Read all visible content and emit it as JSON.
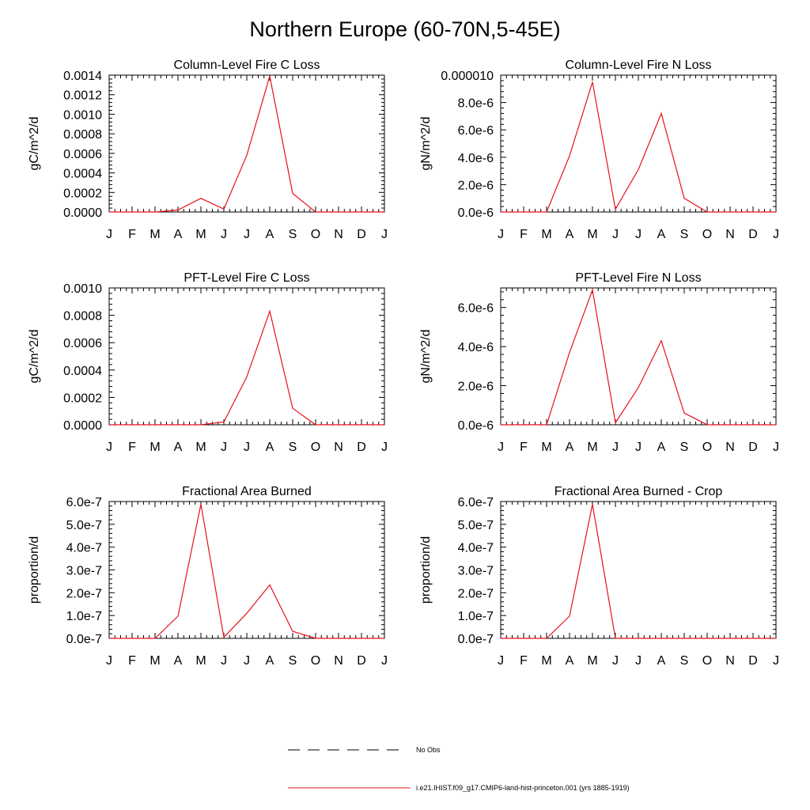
{
  "page": {
    "title": "Northern Europe (60-70N,5-45E)"
  },
  "colors": {
    "series": "#e8101a",
    "axis": "#000000",
    "obs": "#000000"
  },
  "legend": [
    {
      "label": "No Obs",
      "style": "dashed",
      "color": "#000000"
    },
    {
      "label": "i.e21.IHIST.f09_g17.CMIP6-land-hist-princeton.001 (yrs 1885-1919)",
      "style": "solid",
      "color": "#e8101a"
    }
  ],
  "chart_data": [
    {
      "type": "line",
      "title": "Column-Level Fire C Loss",
      "ylabel": "gC/m^2/d",
      "categories": [
        "J",
        "F",
        "M",
        "A",
        "M",
        "J",
        "J",
        "A",
        "S",
        "O",
        "N",
        "D",
        "J"
      ],
      "ylim": [
        0,
        0.0014
      ],
      "yticks": [
        0,
        0.0002,
        0.0004,
        0.0006,
        0.0008,
        0.001,
        0.0012,
        0.0014
      ],
      "ytick_labels": [
        "0.0000",
        "0.0002",
        "0.0004",
        "0.0006",
        "0.0008",
        "0.0010",
        "0.0012",
        "0.0014"
      ],
      "series": [
        {
          "values": [
            0,
            0,
            0,
            2e-05,
            0.00014,
            3e-05,
            0.00058,
            0.00139,
            0.00019,
            0,
            0,
            0,
            0
          ]
        }
      ]
    },
    {
      "type": "line",
      "title": "Column-Level Fire N Loss",
      "ylabel": "gN/m^2/d",
      "categories": [
        "J",
        "F",
        "M",
        "A",
        "M",
        "J",
        "J",
        "A",
        "S",
        "O",
        "N",
        "D",
        "J"
      ],
      "ylim": [
        0,
        1e-05
      ],
      "yticks": [
        0,
        2e-06,
        4e-06,
        6e-06,
        8e-06,
        1e-05
      ],
      "ytick_labels": [
        "0.0e-6",
        "2.0e-6",
        "4.0e-6",
        "6.0e-6",
        "8.0e-6",
        "0.000010"
      ],
      "series": [
        {
          "values": [
            0,
            0,
            0,
            4.1e-06,
            9.5e-06,
            2e-07,
            3.1e-06,
            7.2e-06,
            1e-06,
            0,
            0,
            0,
            0
          ]
        }
      ]
    },
    {
      "type": "line",
      "title": "PFT-Level Fire C Loss",
      "ylabel": "gC/m^2/d",
      "categories": [
        "J",
        "F",
        "M",
        "A",
        "M",
        "J",
        "J",
        "A",
        "S",
        "O",
        "N",
        "D",
        "J"
      ],
      "ylim": [
        0,
        0.001
      ],
      "yticks": [
        0,
        0.0002,
        0.0004,
        0.0006,
        0.0008,
        0.001
      ],
      "ytick_labels": [
        "0.0000",
        "0.0002",
        "0.0004",
        "0.0006",
        "0.0008",
        "0.0010"
      ],
      "series": [
        {
          "values": [
            0,
            0,
            0,
            0,
            0,
            2e-05,
            0.00035,
            0.00083,
            0.00012,
            0,
            0,
            0,
            0
          ]
        }
      ]
    },
    {
      "type": "line",
      "title": "PFT-Level Fire N Loss",
      "ylabel": "gN/m^2/d",
      "categories": [
        "J",
        "F",
        "M",
        "A",
        "M",
        "J",
        "J",
        "A",
        "S",
        "O",
        "N",
        "D",
        "J"
      ],
      "ylim": [
        0,
        7e-06
      ],
      "yticks": [
        0,
        2e-06,
        4e-06,
        6e-06
      ],
      "ytick_labels": [
        "0.0e-6",
        "2.0e-6",
        "4.0e-6",
        "6.0e-6"
      ],
      "series": [
        {
          "values": [
            0,
            0,
            0,
            3.7e-06,
            6.9e-06,
            1e-07,
            1.9e-06,
            4.3e-06,
            6e-07,
            0,
            0,
            0,
            0
          ]
        }
      ]
    },
    {
      "type": "line",
      "title": "Fractional Area Burned",
      "ylabel": "proportion/d",
      "categories": [
        "J",
        "F",
        "M",
        "A",
        "M",
        "J",
        "J",
        "A",
        "S",
        "O",
        "N",
        "D",
        "J"
      ],
      "ylim": [
        0,
        6e-07
      ],
      "yticks": [
        0,
        1e-07,
        2e-07,
        3e-07,
        4e-07,
        5e-07,
        6e-07
      ],
      "ytick_labels": [
        "0.0e-7",
        "1.0e-7",
        "2.0e-7",
        "3.0e-7",
        "4.0e-7",
        "5.0e-7",
        "6.0e-7"
      ],
      "series": [
        {
          "values": [
            0,
            0,
            0,
            9.7e-08,
            5.88e-07,
            5e-09,
            1.1e-07,
            2.34e-07,
            3.1e-08,
            0,
            0,
            0,
            0
          ]
        }
      ]
    },
    {
      "type": "line",
      "title": "Fractional Area Burned - Crop",
      "ylabel": "proportion/d",
      "categories": [
        "J",
        "F",
        "M",
        "A",
        "M",
        "J",
        "J",
        "A",
        "S",
        "O",
        "N",
        "D",
        "J"
      ],
      "ylim": [
        0,
        6e-07
      ],
      "yticks": [
        0,
        1e-07,
        2e-07,
        3e-07,
        4e-07,
        5e-07,
        6e-07
      ],
      "ytick_labels": [
        "0.0e-7",
        "1.0e-7",
        "2.0e-7",
        "3.0e-7",
        "4.0e-7",
        "5.0e-7",
        "6.0e-7"
      ],
      "series": [
        {
          "values": [
            0,
            0,
            0,
            9.7e-08,
            5.88e-07,
            0,
            0,
            0,
            0,
            0,
            0,
            0,
            0
          ]
        }
      ]
    }
  ]
}
